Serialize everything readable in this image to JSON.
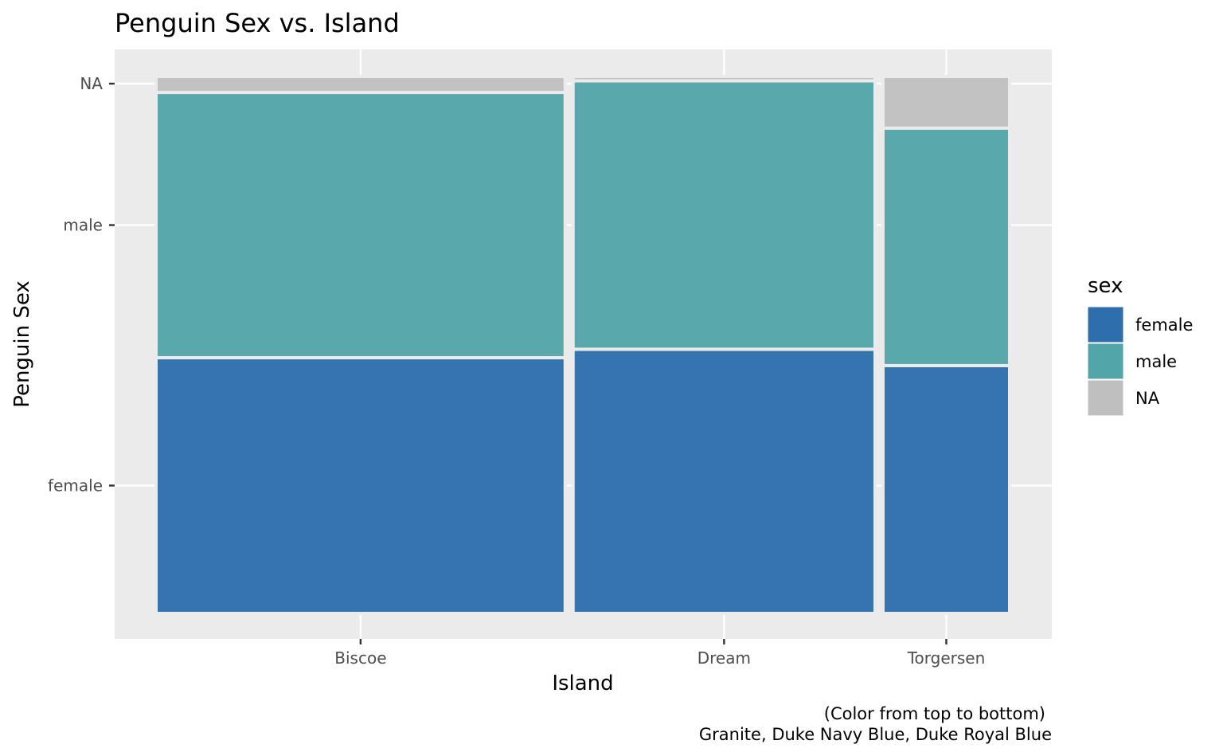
{
  "chart_data": {
    "type": "mosaic",
    "title": "Penguin Sex vs. Island",
    "xlabel": "Island",
    "ylabel": "Penguin Sex",
    "categories": [
      "Biscoe",
      "Dream",
      "Torgersen"
    ],
    "category_counts": [
      168,
      124,
      52
    ],
    "sex_levels": [
      "female",
      "male",
      "NA"
    ],
    "series": [
      {
        "name": "female",
        "values": [
          80,
          61,
          24
        ],
        "color": "#2e6ead"
      },
      {
        "name": "male",
        "values": [
          83,
          62,
          23
        ],
        "color": "#52a6a9"
      },
      {
        "name": "NA",
        "values": [
          5,
          1,
          5
        ],
        "color": "#bfbfbf"
      }
    ],
    "y_tick_labels": [
      "female",
      "male",
      "NA"
    ],
    "legend": {
      "title": "sex",
      "position": "right",
      "entries": [
        {
          "label": "female",
          "color": "#2e6ead"
        },
        {
          "label": "male",
          "color": "#52a6a9"
        },
        {
          "label": "NA",
          "color": "#bfbfbf"
        }
      ]
    },
    "caption": [
      "(Color from top to bottom)",
      "Granite, Duke Navy Blue, Duke Royal Blue"
    ],
    "grid": true,
    "panel_background": "#ebebeb"
  }
}
